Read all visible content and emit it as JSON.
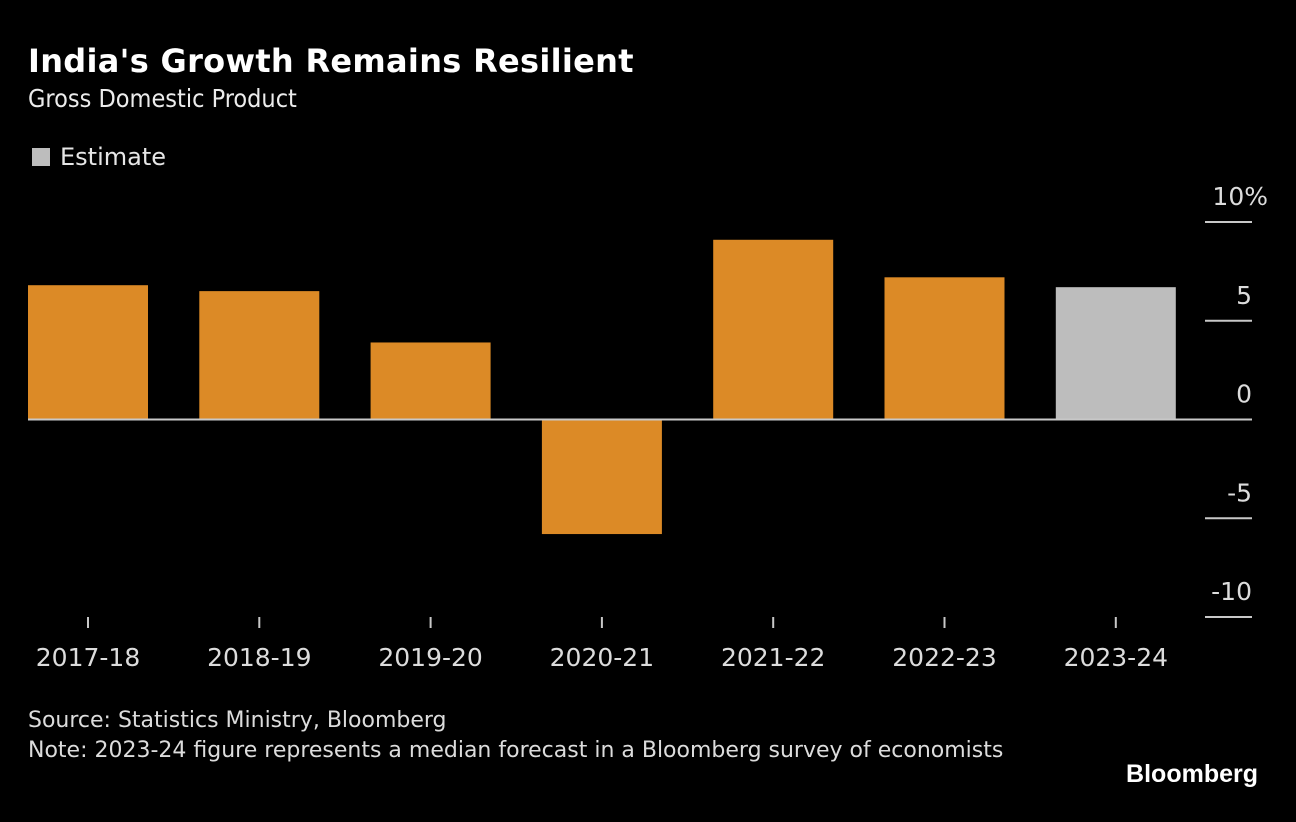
{
  "header": {
    "title": "India's Growth Remains Resilient",
    "subtitle": "Gross Domestic Product"
  },
  "legend": {
    "items": [
      {
        "label": "Estimate",
        "color": "#bdbdbd"
      }
    ]
  },
  "colors": {
    "actual": "#dc8a26",
    "estimate": "#bdbdbd",
    "axis": "#c8c8c8",
    "background": "#000000"
  },
  "chart_data": {
    "type": "bar",
    "title": "India's Growth Remains Resilient",
    "subtitle": "Gross Domestic Product",
    "xlabel": "",
    "ylabel": "",
    "categories": [
      "2017-18",
      "2018-19",
      "2019-20",
      "2020-21",
      "2021-22",
      "2022-23",
      "2023-24"
    ],
    "values": [
      6.8,
      6.5,
      3.9,
      -5.8,
      9.1,
      7.2,
      6.7
    ],
    "estimate": [
      false,
      false,
      false,
      false,
      false,
      false,
      true
    ],
    "ylim": [
      -10,
      10
    ],
    "yticks": [
      10,
      5,
      0,
      -5,
      -10
    ],
    "ytick_labels": [
      "10%",
      "5",
      "0",
      "-5",
      "-10"
    ],
    "y_axis_side": "right",
    "grid": false,
    "legend": {
      "position": "top-left",
      "entries": [
        "Estimate"
      ]
    }
  },
  "footer": {
    "source": "Source: Statistics Ministry, Bloomberg",
    "note": "Note: 2023-24 figure represents a median forecast in a Bloomberg survey of economists"
  },
  "branding": {
    "logo": "Bloomberg"
  }
}
